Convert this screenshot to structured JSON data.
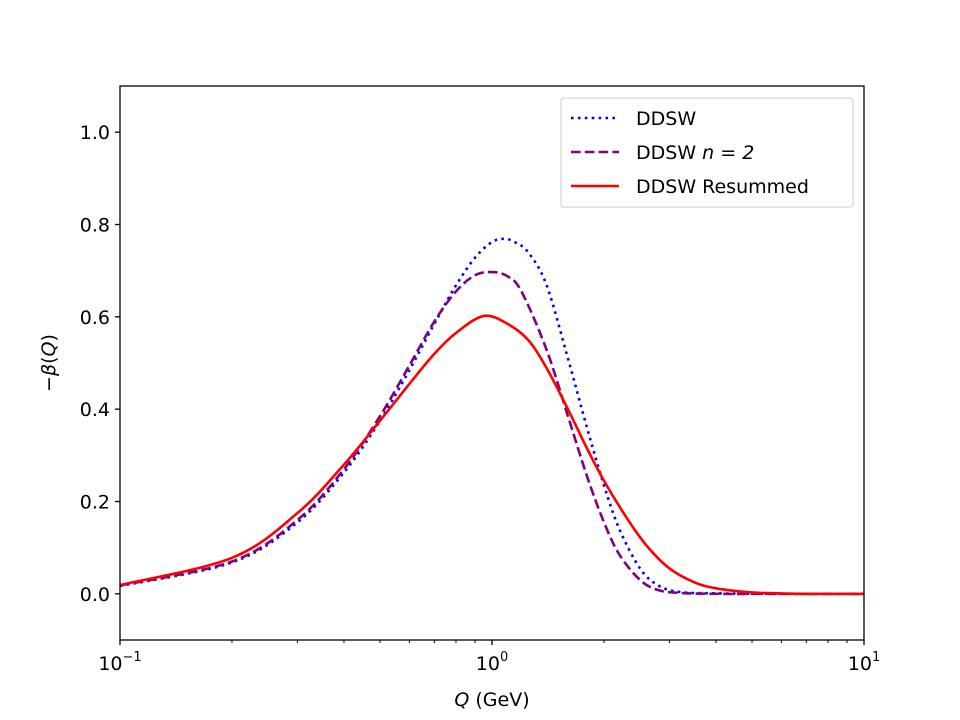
{
  "chart_data": {
    "type": "line",
    "title": "",
    "xlabel": {
      "var": "Q",
      "rest": " (GeV)"
    },
    "ylabel": {
      "minus": "−",
      "beta": "β",
      "open": "(",
      "var": "Q",
      "close": ")"
    },
    "xscale": "log",
    "xlim": [
      0.1,
      10
    ],
    "ylim": [
      -0.1,
      1.1
    ],
    "x_ticks": [
      {
        "value": 0.1,
        "base": "10",
        "exp": "−1"
      },
      {
        "value": 1,
        "base": "10",
        "exp": "0"
      },
      {
        "value": 10,
        "base": "10",
        "exp": "1"
      }
    ],
    "y_ticks": [
      {
        "value": 0.0,
        "label": "0.0"
      },
      {
        "value": 0.2,
        "label": "0.2"
      },
      {
        "value": 0.4,
        "label": "0.4"
      },
      {
        "value": 0.6,
        "label": "0.6"
      },
      {
        "value": 0.8,
        "label": "0.8"
      },
      {
        "value": 1.0,
        "label": "1.0"
      }
    ],
    "legend_position": "top-right",
    "series": [
      {
        "name": "DDSW",
        "legend": {
          "text": "DDSW",
          "math": ""
        },
        "color": "#0000ff",
        "style": "dotted",
        "x": [
          0.1,
          0.2,
          0.3,
          0.4,
          0.5,
          0.6,
          0.7,
          0.8,
          0.9,
          1.0,
          1.08,
          1.15,
          1.25,
          1.4,
          1.6,
          1.8,
          2.0,
          2.2,
          2.5,
          2.8,
          3.2,
          4,
          6,
          10
        ],
        "y": [
          0.017,
          0.068,
          0.155,
          0.263,
          0.375,
          0.485,
          0.585,
          0.668,
          0.728,
          0.762,
          0.769,
          0.762,
          0.74,
          0.67,
          0.51,
          0.36,
          0.235,
          0.14,
          0.055,
          0.018,
          0.004,
          0.001,
          0.0,
          0.0
        ]
      },
      {
        "name": "DDSW n=2",
        "legend": {
          "text": "DDSW ",
          "math": "n = 2"
        },
        "color": "#800080",
        "style": "dashed",
        "x": [
          0.1,
          0.2,
          0.3,
          0.4,
          0.5,
          0.6,
          0.7,
          0.8,
          0.9,
          1.0,
          1.1,
          1.2,
          1.4,
          1.6,
          1.8,
          2.0,
          2.2,
          2.5,
          2.8,
          3.2,
          4,
          6,
          10
        ],
        "y": [
          0.018,
          0.07,
          0.16,
          0.27,
          0.385,
          0.495,
          0.59,
          0.655,
          0.69,
          0.697,
          0.688,
          0.655,
          0.53,
          0.385,
          0.255,
          0.155,
          0.085,
          0.03,
          0.008,
          0.002,
          0.0,
          0.0,
          0.0
        ]
      },
      {
        "name": "DDSW Resummed",
        "legend": {
          "text": "DDSW Resummed",
          "math": ""
        },
        "color": "#ff0000",
        "style": "solid",
        "x": [
          0.1,
          0.2,
          0.3,
          0.4,
          0.5,
          0.6,
          0.7,
          0.8,
          0.95,
          1.1,
          1.25,
          1.4,
          1.6,
          1.8,
          2.0,
          2.3,
          2.6,
          3.0,
          3.5,
          4,
          5,
          6,
          7,
          10
        ],
        "y": [
          0.019,
          0.078,
          0.175,
          0.28,
          0.375,
          0.455,
          0.52,
          0.565,
          0.602,
          0.585,
          0.55,
          0.49,
          0.4,
          0.315,
          0.245,
          0.165,
          0.105,
          0.055,
          0.025,
          0.012,
          0.003,
          0.001,
          0.0,
          0.0
        ]
      }
    ]
  }
}
